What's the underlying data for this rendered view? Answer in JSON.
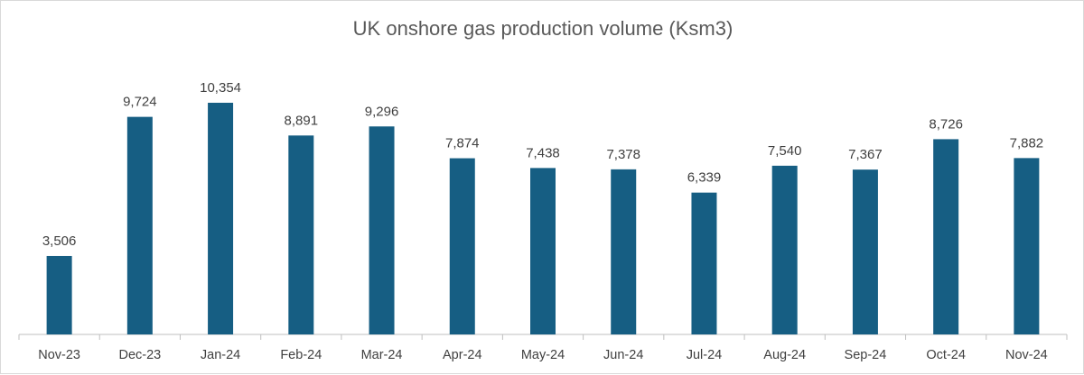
{
  "chart_data": {
    "type": "bar",
    "title": "UK onshore gas production volume (Ksm3)",
    "xlabel": "",
    "ylabel": "",
    "categories": [
      "Nov-23",
      "Dec-23",
      "Jan-24",
      "Feb-24",
      "Mar-24",
      "Apr-24",
      "May-24",
      "Jun-24",
      "Jul-24",
      "Aug-24",
      "Sep-24",
      "Oct-24",
      "Nov-24"
    ],
    "values": [
      3506,
      9724,
      10354,
      8891,
      9296,
      7874,
      7438,
      7378,
      6339,
      7540,
      7367,
      8726,
      7882
    ],
    "value_labels": [
      "3,506",
      "9,724",
      "10,354",
      "8,891",
      "9,296",
      "7,874",
      "7,438",
      "7,378",
      "6,339",
      "7,540",
      "7,367",
      "8,726",
      "7,882"
    ],
    "ylim": [
      0,
      12000
    ],
    "grid": false,
    "legend": "none",
    "bar_color": "#165e83"
  }
}
